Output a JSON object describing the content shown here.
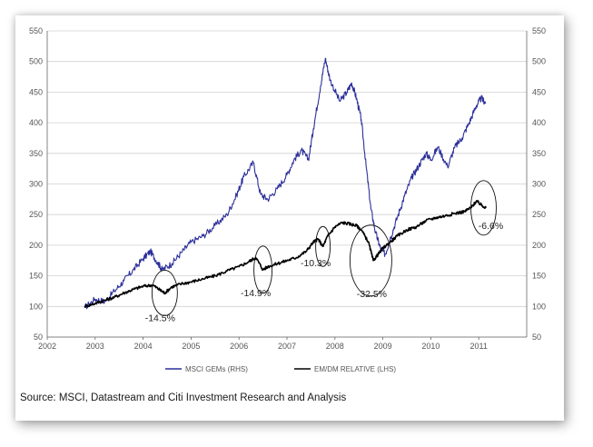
{
  "chart_data": {
    "type": "line",
    "title": "",
    "xlabel": "",
    "ylabel_left": "",
    "ylabel_right": "",
    "x_ticks": [
      "2002",
      "2003",
      "2004",
      "2005",
      "2006",
      "2007",
      "2008",
      "2009",
      "2010",
      "2011"
    ],
    "xlim": [
      2002.0,
      2012.0
    ],
    "y_left_ticks": [
      "50",
      "100",
      "150",
      "200",
      "250",
      "300",
      "350",
      "400",
      "450",
      "500",
      "550"
    ],
    "y_right_ticks": [
      "50",
      "100",
      "150",
      "200",
      "250",
      "300",
      "350",
      "400",
      "450",
      "500",
      "550"
    ],
    "ylim": [
      50,
      550
    ],
    "grid": "horizontal",
    "legend_position": "bottom",
    "series": [
      {
        "name": "MSCI GEMs (RHS)",
        "color": "#2b2f9a",
        "axis": "right",
        "points": [
          [
            2002.78,
            98
          ],
          [
            2003.0,
            112
          ],
          [
            2003.2,
            108
          ],
          [
            2003.4,
            125
          ],
          [
            2003.6,
            142
          ],
          [
            2003.8,
            160
          ],
          [
            2004.0,
            178
          ],
          [
            2004.15,
            190
          ],
          [
            2004.3,
            172
          ],
          [
            2004.4,
            160
          ],
          [
            2004.6,
            170
          ],
          [
            2004.8,
            188
          ],
          [
            2005.0,
            205
          ],
          [
            2005.25,
            215
          ],
          [
            2005.5,
            232
          ],
          [
            2005.75,
            250
          ],
          [
            2005.95,
            282
          ],
          [
            2006.1,
            312
          ],
          [
            2006.3,
            335
          ],
          [
            2006.45,
            283
          ],
          [
            2006.6,
            275
          ],
          [
            2006.8,
            292
          ],
          [
            2007.0,
            315
          ],
          [
            2007.15,
            340
          ],
          [
            2007.3,
            355
          ],
          [
            2007.45,
            340
          ],
          [
            2007.55,
            390
          ],
          [
            2007.7,
            460
          ],
          [
            2007.8,
            505
          ],
          [
            2007.9,
            470
          ],
          [
            2008.1,
            435
          ],
          [
            2008.25,
            450
          ],
          [
            2008.35,
            465
          ],
          [
            2008.45,
            440
          ],
          [
            2008.55,
            405
          ],
          [
            2008.65,
            330
          ],
          [
            2008.75,
            260
          ],
          [
            2008.85,
            220
          ],
          [
            2008.95,
            195
          ],
          [
            2009.05,
            185
          ],
          [
            2009.15,
            210
          ],
          [
            2009.3,
            245
          ],
          [
            2009.45,
            280
          ],
          [
            2009.6,
            310
          ],
          [
            2009.75,
            330
          ],
          [
            2009.9,
            350
          ],
          [
            2010.0,
            340
          ],
          [
            2010.15,
            360
          ],
          [
            2010.35,
            328
          ],
          [
            2010.5,
            360
          ],
          [
            2010.65,
            375
          ],
          [
            2010.8,
            400
          ],
          [
            2010.95,
            428
          ],
          [
            2011.05,
            440
          ],
          [
            2011.15,
            432
          ]
        ]
      },
      {
        "name": "EM/DM RELATIVE (LHS)",
        "color": "#000000",
        "axis": "left",
        "points": [
          [
            2002.78,
            100
          ],
          [
            2003.0,
            105
          ],
          [
            2003.2,
            110
          ],
          [
            2003.4,
            115
          ],
          [
            2003.6,
            122
          ],
          [
            2003.8,
            128
          ],
          [
            2004.0,
            133
          ],
          [
            2004.2,
            135
          ],
          [
            2004.35,
            127
          ],
          [
            2004.45,
            122
          ],
          [
            2004.6,
            132
          ],
          [
            2004.8,
            137
          ],
          [
            2005.0,
            140
          ],
          [
            2005.25,
            145
          ],
          [
            2005.5,
            150
          ],
          [
            2005.75,
            158
          ],
          [
            2006.0,
            165
          ],
          [
            2006.2,
            173
          ],
          [
            2006.35,
            180
          ],
          [
            2006.5,
            160
          ],
          [
            2006.6,
            165
          ],
          [
            2006.8,
            170
          ],
          [
            2007.0,
            175
          ],
          [
            2007.2,
            180
          ],
          [
            2007.4,
            190
          ],
          [
            2007.55,
            205
          ],
          [
            2007.65,
            210
          ],
          [
            2007.75,
            198
          ],
          [
            2007.85,
            215
          ],
          [
            2008.0,
            230
          ],
          [
            2008.15,
            237
          ],
          [
            2008.3,
            235
          ],
          [
            2008.45,
            232
          ],
          [
            2008.55,
            225
          ],
          [
            2008.7,
            205
          ],
          [
            2008.8,
            175
          ],
          [
            2008.9,
            185
          ],
          [
            2009.0,
            195
          ],
          [
            2009.15,
            205
          ],
          [
            2009.3,
            215
          ],
          [
            2009.5,
            225
          ],
          [
            2009.7,
            230
          ],
          [
            2009.9,
            240
          ],
          [
            2010.1,
            245
          ],
          [
            2010.3,
            248
          ],
          [
            2010.5,
            252
          ],
          [
            2010.7,
            255
          ],
          [
            2010.85,
            262
          ],
          [
            2010.95,
            272
          ],
          [
            2011.05,
            266
          ],
          [
            2011.15,
            261
          ]
        ]
      }
    ],
    "annotations": [
      {
        "label": "-14.5%",
        "x": 2004.45,
        "y": 122
      },
      {
        "label": "-14.9%",
        "x": 2006.5,
        "y": 160
      },
      {
        "label": "-10.3%",
        "x": 2007.75,
        "y": 198
      },
      {
        "label": "-32.5%",
        "x": 2008.75,
        "y": 175
      },
      {
        "label": "-6.6%",
        "x": 2011.1,
        "y": 261
      }
    ]
  },
  "legend": [
    {
      "label": "MSCI GEMs (RHS)",
      "color": "#2b2f9a"
    },
    {
      "label": "EM/DM RELATIVE (LHS)",
      "color": "#000000"
    }
  ],
  "source": "Source: MSCI, Datastream and Citi Investment Research and Analysis"
}
